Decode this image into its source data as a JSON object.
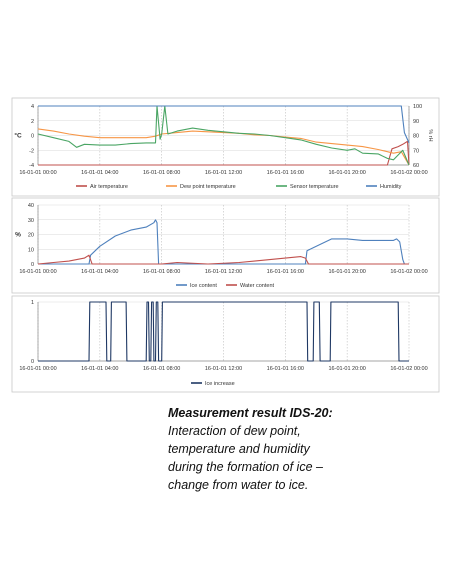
{
  "caption": {
    "title": "Measurement result IDS-20:",
    "lines": [
      "Interaction of dew point,",
      "temperature and humidity",
      "during the formation of ice –",
      "change from water to ice."
    ]
  },
  "chart_data": [
    {
      "type": "line",
      "x_tick_labels": [
        "16-01-01 00:00",
        "16-01-01 04:00",
        "16-01-01 08:00",
        "16-01-01 12:00",
        "16-01-01 16:00",
        "16-01-01 20:00",
        "16-01-02 00:00"
      ],
      "xlim": [
        0,
        24
      ],
      "ylabel": "°C",
      "ylim": [
        -4,
        4
      ],
      "y_ticks": [
        "-4",
        "-2",
        "0",
        "2",
        "4"
      ],
      "y2label": "% rH",
      "y2lim": [
        60,
        100
      ],
      "y2_ticks": [
        "60",
        "70",
        "80",
        "90",
        "100"
      ],
      "grid": true,
      "legend_position": "bottom",
      "series": [
        {
          "name": "Air temperature",
          "axis": "left",
          "color": "#c0504d",
          "x": [
            0,
            22.6,
            22.9,
            23.3,
            23.6,
            23.9,
            24.0
          ],
          "y": [
            -4,
            -4,
            -1.8,
            -1.5,
            -1.2,
            -0.8,
            -4
          ]
        },
        {
          "name": "Dew point temperature",
          "axis": "left",
          "color": "#f79646",
          "x": [
            0,
            1,
            2,
            3,
            4,
            5,
            6,
            7,
            7.6,
            8,
            9,
            10,
            11,
            12,
            13,
            14,
            15,
            16,
            17,
            18,
            19,
            20,
            21,
            22,
            22.6,
            23,
            23.5,
            24
          ],
          "y": [
            0.9,
            0.6,
            0.2,
            -0.1,
            -0.3,
            -0.3,
            -0.3,
            -0.3,
            -0.1,
            0.2,
            0.4,
            0.6,
            0.5,
            0.4,
            0.3,
            0.1,
            0.0,
            -0.2,
            -0.4,
            -0.9,
            -1.1,
            -1.3,
            -1.5,
            -1.9,
            -2.2,
            -2.4,
            -2.2,
            -4
          ]
        },
        {
          "name": "Sensor temperature",
          "axis": "left",
          "color": "#4aa564",
          "x": [
            0,
            1,
            2,
            2.5,
            3,
            4,
            5,
            6,
            7,
            7.6,
            7.7,
            7.9,
            8,
            8.2,
            8.4,
            9,
            10,
            11,
            12,
            13,
            14,
            15,
            16,
            17,
            18,
            19,
            20,
            20.5,
            21,
            22,
            22.6,
            23,
            23.6,
            24
          ],
          "y": [
            0.2,
            -0.3,
            -0.8,
            -1.6,
            -1.2,
            -1.3,
            -1.3,
            -1.1,
            -1.0,
            -1.0,
            4.0,
            -0.5,
            0.2,
            4.0,
            0.2,
            0.6,
            1.0,
            0.7,
            0.5,
            0.3,
            0.2,
            0.0,
            -0.3,
            -0.6,
            -1.2,
            -1.7,
            -2.0,
            -1.8,
            -2.4,
            -2.5,
            -3.1,
            -3.3,
            -2.0,
            -4
          ]
        },
        {
          "name": "Humidity",
          "axis": "right",
          "color": "#4f81bd",
          "x": [
            0,
            23.5,
            23.7,
            24
          ],
          "y": [
            100,
            100,
            82,
            75
          ]
        }
      ]
    },
    {
      "type": "line",
      "x_tick_labels": [
        "16-01-01 00:00",
        "16-01-01 04:00",
        "16-01-01 08:00",
        "16-01-01 12:00",
        "16-01-01 16:00",
        "16-01-01 20:00",
        "16-01-02 00:00"
      ],
      "xlim": [
        0,
        24
      ],
      "ylabel": "%",
      "ylim": [
        0,
        40
      ],
      "y_ticks": [
        "0",
        "10",
        "20",
        "30",
        "40"
      ],
      "grid": true,
      "legend_position": "bottom",
      "series": [
        {
          "name": "Ice content",
          "color": "#4f81bd",
          "x": [
            0,
            3.3,
            3.4,
            4,
            5,
            6,
            7,
            7.5,
            7.6,
            7.7,
            7.8,
            12,
            17.3,
            17.4,
            18,
            19,
            20,
            21,
            22,
            23,
            23.2,
            23.4,
            23.6,
            23.7,
            24
          ],
          "y": [
            0,
            0,
            6,
            12,
            19,
            23,
            25,
            28,
            30,
            28,
            0,
            0,
            0,
            9,
            12,
            17,
            17,
            16,
            16,
            16,
            17,
            15,
            3,
            0,
            0
          ]
        },
        {
          "name": "Water content",
          "color": "#c0504d",
          "x": [
            0,
            1,
            2,
            3,
            3.3,
            3.5,
            8,
            9,
            11,
            13,
            14,
            15,
            16,
            17,
            17.3,
            17.5,
            24
          ],
          "y": [
            0,
            1,
            2,
            4,
            6,
            0,
            0,
            1,
            0,
            1,
            2,
            3,
            4,
            5,
            4,
            0,
            0
          ]
        }
      ]
    },
    {
      "type": "line",
      "x_tick_labels": [
        "16-01-01 00:00",
        "16-01-01 04:00",
        "16-01-01 08:00",
        "16-01-01 12:00",
        "16-01-01 16:00",
        "16-01-01 20:00",
        "16-01-02 00:00"
      ],
      "xlim": [
        0,
        24
      ],
      "ylim": [
        0,
        1
      ],
      "y_ticks": [
        "0",
        "1"
      ],
      "grid": true,
      "legend_position": "bottom",
      "series": [
        {
          "name": "Ice increase",
          "color": "#1f3864",
          "x": [
            0,
            3.3,
            3.35,
            4.4,
            4.45,
            4.7,
            4.75,
            5.7,
            5.75,
            7.0,
            7.05,
            7.15,
            7.2,
            7.3,
            7.35,
            7.45,
            7.5,
            7.6,
            7.65,
            7.75,
            7.8,
            8.0,
            8.05,
            17.4,
            17.45,
            17.8,
            17.85,
            18.2,
            18.25,
            18.9,
            18.95,
            23.3,
            23.35,
            23.6,
            23.65,
            24
          ],
          "y": [
            0,
            0,
            1,
            1,
            0,
            0,
            1,
            1,
            0,
            0,
            1,
            1,
            0,
            0,
            1,
            1,
            0,
            0,
            1,
            1,
            0,
            0,
            1,
            1,
            0,
            0,
            1,
            1,
            0,
            0,
            1,
            1,
            0,
            0,
            0,
            0
          ]
        }
      ]
    }
  ]
}
